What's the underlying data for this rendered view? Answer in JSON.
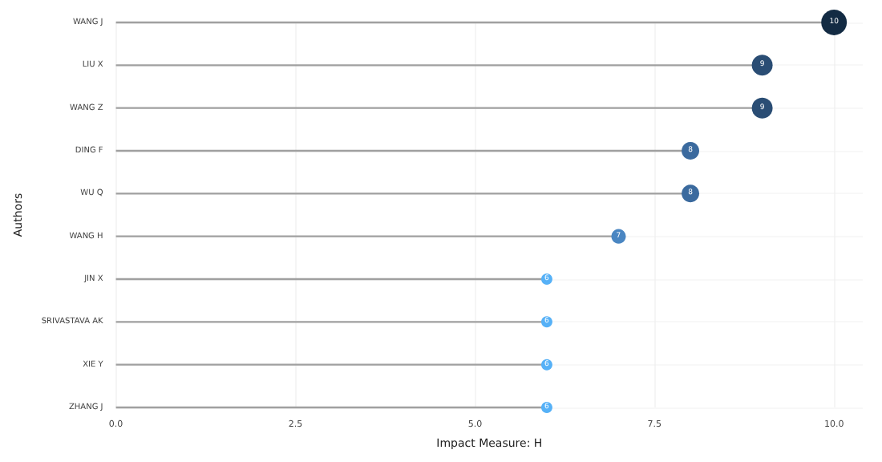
{
  "chart_data": {
    "type": "lollipop",
    "orientation": "horizontal",
    "xlabel": "Impact Measure: H",
    "ylabel": "Authors",
    "categories": [
      "WANG J",
      "LIU X",
      "WANG Z",
      "DING F",
      "WU Q",
      "WANG H",
      "JIN X",
      "SRIVASTAVA AK",
      "XIE Y",
      "ZHANG J"
    ],
    "values": [
      10,
      9,
      9,
      8,
      8,
      7,
      6,
      6,
      6,
      6
    ],
    "sizes": [
      1,
      0.66,
      0.66,
      0.47,
      0.47,
      0.32,
      0.19,
      0.19,
      0.19,
      0.19
    ],
    "colors": [
      "#132b43",
      "#2a4d74",
      "#2a4d74",
      "#3b6a9e",
      "#3b6a9e",
      "#4a86c2",
      "#56b1f7",
      "#56b1f7",
      "#56b1f7",
      "#56b1f7"
    ],
    "xlim": [
      0,
      10.4
    ],
    "xticks": [
      {
        "value": 0,
        "label": "0.0"
      },
      2.5,
      {
        "value": 5,
        "label": "5.0"
      },
      7.5,
      {
        "value": 10,
        "label": "10.0"
      }
    ],
    "grid": true,
    "data_labels": true,
    "marker": "circle"
  }
}
